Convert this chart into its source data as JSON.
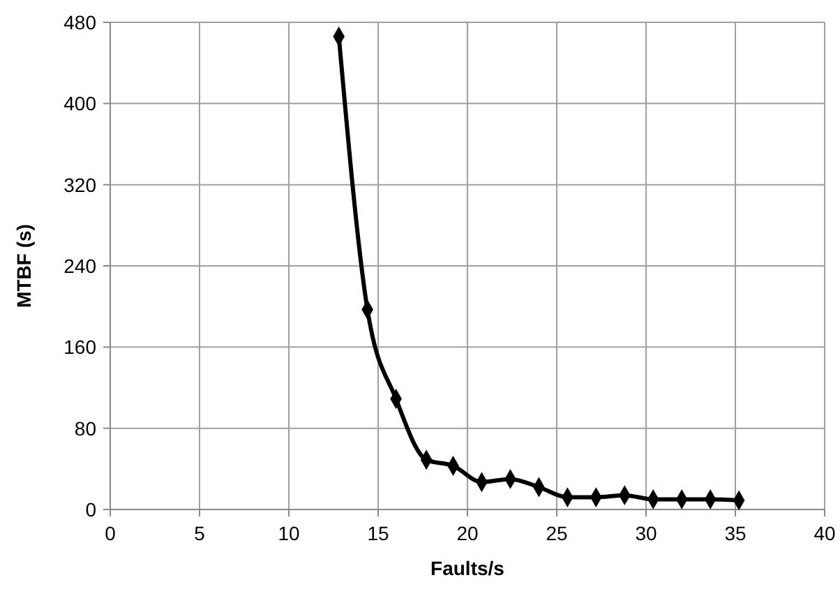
{
  "chart_data": {
    "type": "line",
    "xlabel": "Faults/s",
    "ylabel": "MTBF (s)",
    "xlim": [
      0,
      40
    ],
    "xticks": [
      0,
      5,
      10,
      15,
      20,
      25,
      30,
      35,
      40
    ],
    "ylim": [
      0,
      480
    ],
    "yticks": [
      0,
      80,
      160,
      240,
      320,
      400,
      480
    ],
    "grid": true,
    "marker": "diamond",
    "line_style": "solid",
    "series": [
      {
        "color": "#000000",
        "x": [
          12.8,
          14.4,
          16.0,
          17.7,
          19.2,
          20.8,
          22.4,
          24.0,
          25.6,
          27.2,
          28.8,
          30.4,
          32.0,
          33.6,
          35.2
        ],
        "values": [
          466,
          197,
          109,
          49,
          43,
          27,
          30,
          22,
          12,
          12,
          14,
          10,
          10,
          10,
          9
        ]
      }
    ]
  }
}
